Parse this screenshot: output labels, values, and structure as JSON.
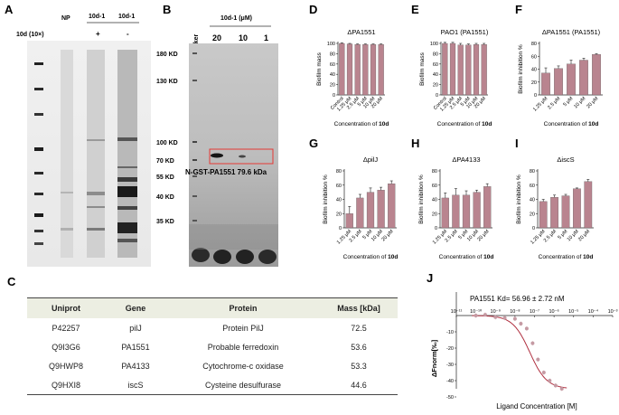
{
  "panels": {
    "A": "A",
    "B": "B",
    "C": "C",
    "D": "D",
    "E": "E",
    "F": "F",
    "G": "G",
    "H": "H",
    "I": "I",
    "J": "J"
  },
  "panel_a": {
    "row_label": "10d (10×)",
    "lanes": [
      "NP",
      "10d-1",
      "10d-1"
    ],
    "signs": [
      "+",
      "-"
    ]
  },
  "panel_b": {
    "header": "10d-1 (μM)",
    "marker": "Maker",
    "concentrations": [
      "20",
      "10",
      "1"
    ],
    "mw_labels": [
      "180 KD",
      "130 KD",
      "100 KD",
      "70 KD",
      "55 KD",
      "40 KD",
      "35 KD"
    ],
    "band_label": "N-GST-PA1551  79.6 kDa",
    "highlight_color": "#e53935"
  },
  "table": {
    "headers": [
      "Uniprot",
      "Gene",
      "Protein",
      "Mass [kDa]"
    ],
    "rows": [
      [
        "P42257",
        "pilJ",
        "Protein PilJ",
        "72.5"
      ],
      [
        "Q9I3G6",
        "PA1551",
        "Probable ferredoxin",
        "53.6"
      ],
      [
        "Q9HWP8",
        "PA4133",
        "Cytochrome-c oxidase",
        "53.3"
      ],
      [
        "Q9HXI8",
        "iscS",
        "Cysteine desulfurase",
        "44.6"
      ]
    ],
    "header_bg": "#eceee2"
  },
  "bar_color": "#b9848f",
  "chart_data": [
    {
      "panel": "D",
      "type": "bar",
      "title": "ΔPA1551",
      "ylabel": "Biofilm mass",
      "xlabel": "Concentration of 10d",
      "categories": [
        "Control",
        "1.25 μM",
        "2.5 μM",
        "5 μM",
        "10 μM",
        "20 μM"
      ],
      "values": [
        100,
        99,
        98,
        98,
        98,
        98
      ],
      "ylim": [
        0,
        100
      ],
      "yticks": [
        0,
        20,
        40,
        60,
        80,
        100
      ]
    },
    {
      "panel": "E",
      "type": "bar",
      "title": "PAO1 (PA1551)",
      "ylabel": "Biofilm mass",
      "xlabel": "Concentration of 10d",
      "categories": [
        "Control",
        "1.25 μM",
        "2.5 μM",
        "5 μM",
        "10 μM",
        "20 μM"
      ],
      "values": [
        100,
        100,
        97,
        97,
        98,
        98
      ],
      "ylim": [
        0,
        100
      ],
      "yticks": [
        0,
        20,
        40,
        60,
        80,
        100
      ]
    },
    {
      "panel": "F",
      "type": "bar",
      "title": "ΔPA1551 (PA1551)",
      "ylabel": "Biofilm inhibition %",
      "xlabel": "Concentration of 10d",
      "categories": [
        "1.25 μM",
        "2.5 μM",
        "5 μM",
        "10 μM",
        "20 μM"
      ],
      "values": [
        34,
        41,
        48,
        54,
        63
      ],
      "ylim": [
        0,
        80
      ],
      "yticks": [
        0,
        20,
        40,
        60,
        80
      ]
    },
    {
      "panel": "G",
      "type": "bar",
      "title": "ΔpilJ",
      "ylabel": "Biofilm inhibition %",
      "xlabel": "Concentration of 10d",
      "categories": [
        "1.25 μM",
        "2.5 μM",
        "5 μM",
        "10 μM",
        "20 μM"
      ],
      "values": [
        20,
        42,
        50,
        53,
        62
      ],
      "ylim": [
        0,
        80
      ],
      "yticks": [
        0,
        20,
        40,
        60,
        80
      ]
    },
    {
      "panel": "H",
      "type": "bar",
      "title": "ΔPA4133",
      "ylabel": "Biofilm inhibition %",
      "xlabel": "Concentration of 10d",
      "categories": [
        "1.25 μM",
        "2.5 μM",
        "5 μM",
        "10 μM",
        "20 μM"
      ],
      "values": [
        42,
        46,
        46,
        50,
        58
      ],
      "ylim": [
        0,
        80
      ],
      "yticks": [
        0,
        20,
        40,
        60,
        80
      ]
    },
    {
      "panel": "I",
      "type": "bar",
      "title": "ΔiscS",
      "ylabel": "Biofilm inhibition %",
      "xlabel": "Concentration of 10d",
      "categories": [
        "1.25 μM",
        "2.5 μM",
        "5 μM",
        "10 μM",
        "20 μM"
      ],
      "values": [
        37,
        43,
        45,
        55,
        65
      ],
      "ylim": [
        0,
        80
      ],
      "yticks": [
        0,
        20,
        40,
        60,
        80
      ]
    },
    {
      "panel": "J",
      "type": "scatter",
      "annotation": "PA1551 Kd= 56.96 ± 2.72 nM",
      "xlabel": "Ligand Concentration [M]",
      "ylabel": "ΔFnorm[‰]",
      "xscale": "log",
      "xlim": [
        -11,
        -3
      ],
      "xticks": [
        "10⁻¹¹",
        "10⁻¹⁰",
        "10⁻⁹",
        "10⁻⁸",
        "10⁻⁷",
        "10⁻⁶",
        "10⁻⁵",
        "10⁻⁴",
        "10⁻³"
      ],
      "yticks": [
        "-10",
        "-20",
        "-30",
        "-40",
        "-50"
      ],
      "ylim": [
        -50,
        5
      ],
      "series": [
        {
          "x": [
            1e-10,
            3e-10,
            1e-09,
            3e-09,
            1e-08,
            2e-08,
            4e-08,
            8e-08,
            1.5e-07,
            3e-07,
            6e-07,
            1.2e-06,
            2.5e-06
          ],
          "y": [
            0,
            0.5,
            -1,
            -1.5,
            -2,
            -5,
            -8,
            -17,
            -27,
            -35,
            -40,
            -43,
            -45
          ]
        }
      ],
      "fit_color": "#b03040"
    }
  ]
}
